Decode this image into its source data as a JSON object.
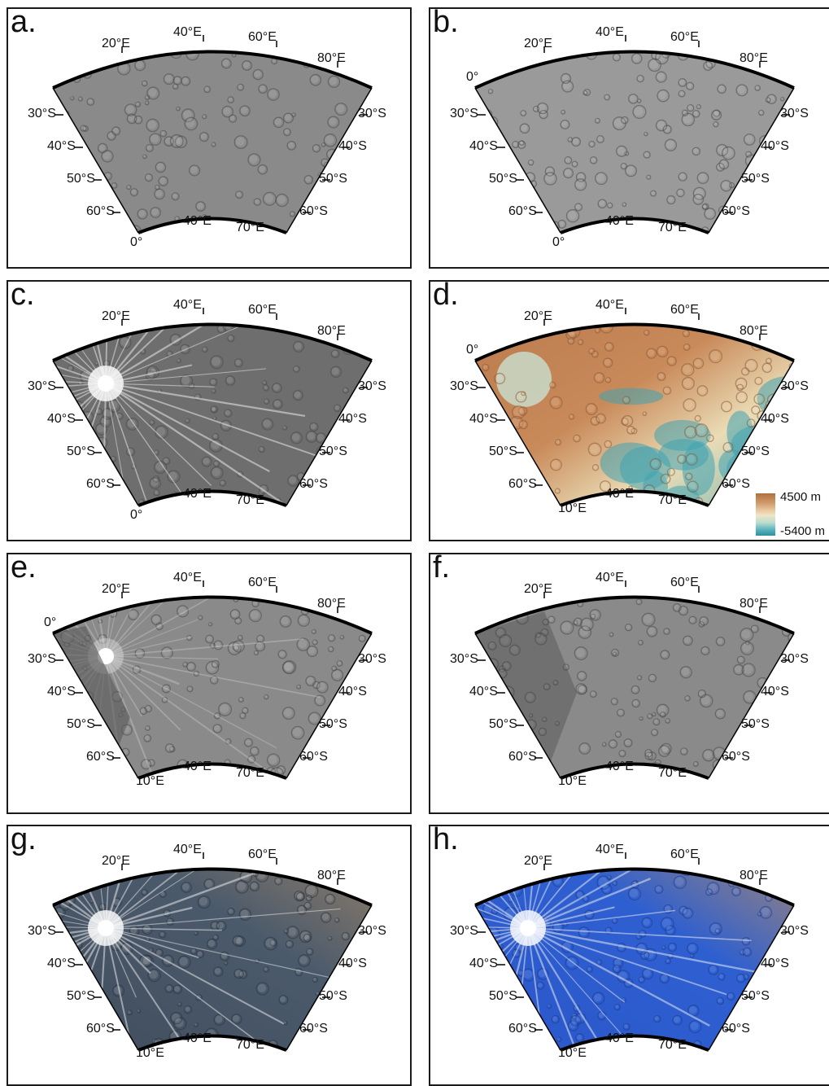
{
  "panels": [
    {
      "id": "a",
      "label": "a.",
      "style": "gray",
      "top_labels": [
        "20°E",
        "40°E",
        "60°E",
        "80°E"
      ],
      "left_labels": [
        "30°S",
        "40°S",
        "50°S",
        "60°S"
      ],
      "right_labels": [
        "30°S",
        "40°S",
        "50°S",
        "60°S"
      ],
      "bottom_labels": [
        "40°E",
        "70°E"
      ],
      "corner_label": "0°"
    },
    {
      "id": "b",
      "label": "b.",
      "style": "lightgray",
      "top_labels": [
        "20°E",
        "40°E",
        "60°E",
        "80°E"
      ],
      "left_labels": [
        "30°S",
        "40°S",
        "50°S",
        "60°S"
      ],
      "right_labels": [
        "30°S",
        "40°S",
        "50°S",
        "60°S"
      ],
      "bottom_labels": [
        "40°E",
        "70°E"
      ],
      "corner_label": "0°",
      "extra_label": "0°"
    },
    {
      "id": "c",
      "label": "c.",
      "style": "rays",
      "top_labels": [
        "20°E",
        "40°E",
        "60°E",
        "80°E"
      ],
      "left_labels": [
        "30°S",
        "40°S",
        "50°S",
        "60°S"
      ],
      "right_labels": [
        "30°S",
        "40°S",
        "50°S",
        "60°S"
      ],
      "bottom_labels": [
        "40°E",
        "70°E"
      ],
      "corner_label": "0°"
    },
    {
      "id": "d",
      "label": "d.",
      "style": "topo",
      "top_labels": [
        "20°E",
        "40°E",
        "60°E",
        "80°E"
      ],
      "left_labels": [
        "30°S",
        "40°S",
        "50°S",
        "60°S"
      ],
      "right_labels": [
        "30°S",
        "40°S",
        "50°S",
        "60°S"
      ],
      "bottom_labels": [
        "40°E",
        "70°E"
      ],
      "corner_label": "10°E",
      "extra_label": "0°",
      "legend": {
        "max": "4500 m",
        "min": "-5400 m"
      }
    },
    {
      "id": "e",
      "label": "e.",
      "style": "gray_mosaic",
      "top_labels": [
        "20°E",
        "40°E",
        "60°E",
        "80°E"
      ],
      "left_labels": [
        "30°S",
        "40°S",
        "50°S",
        "60°S"
      ],
      "right_labels": [
        "30°S",
        "40°S",
        "50°S",
        "60°S"
      ],
      "bottom_labels": [
        "40°E",
        "70°E"
      ],
      "corner_label": "10°E",
      "extra_label": "0°"
    },
    {
      "id": "f",
      "label": "f.",
      "style": "gray_shaded",
      "top_labels": [
        "20°E",
        "40°E",
        "60°E",
        "80°E"
      ],
      "left_labels": [
        "30°S",
        "40°S",
        "50°S",
        "60°S"
      ],
      "right_labels": [
        "30°S",
        "40°S",
        "50°S",
        "60°S"
      ],
      "bottom_labels": [
        "40°E",
        "70°E"
      ],
      "corner_label": "10°E"
    },
    {
      "id": "g",
      "label": "g.",
      "style": "color_natural",
      "top_labels": [
        "20°E",
        "40°E",
        "60°E",
        "80°E"
      ],
      "left_labels": [
        "30°S",
        "40°S",
        "50°S",
        "60°S"
      ],
      "right_labels": [
        "30°S",
        "40°S",
        "50°S",
        "60°S"
      ],
      "bottom_labels": [
        "40°E",
        "70°E"
      ],
      "corner_label": "10°E"
    },
    {
      "id": "h",
      "label": "h.",
      "style": "color_enhanced",
      "top_labels": [
        "20°E",
        "40°E",
        "60°E",
        "80°E"
      ],
      "left_labels": [
        "30°S",
        "40°S",
        "50°S",
        "60°S"
      ],
      "right_labels": [
        "30°S",
        "40°S",
        "50°S",
        "60°S"
      ],
      "bottom_labels": [
        "40°E",
        "70°E"
      ],
      "corner_label": "10°E"
    }
  ],
  "colors": {
    "gray": "#8a8a8a",
    "lightgray": "#9a9a9a",
    "rays": "#6e6e6e",
    "topo_high": "#b5754a",
    "topo_mid": "#eadcb6",
    "topo_low": "#3fa2b0",
    "natural_a": "#4b5a6b",
    "natural_b": "#a88a6a",
    "enhanced_a": "#2e5fd0",
    "enhanced_b": "#c8935a"
  }
}
